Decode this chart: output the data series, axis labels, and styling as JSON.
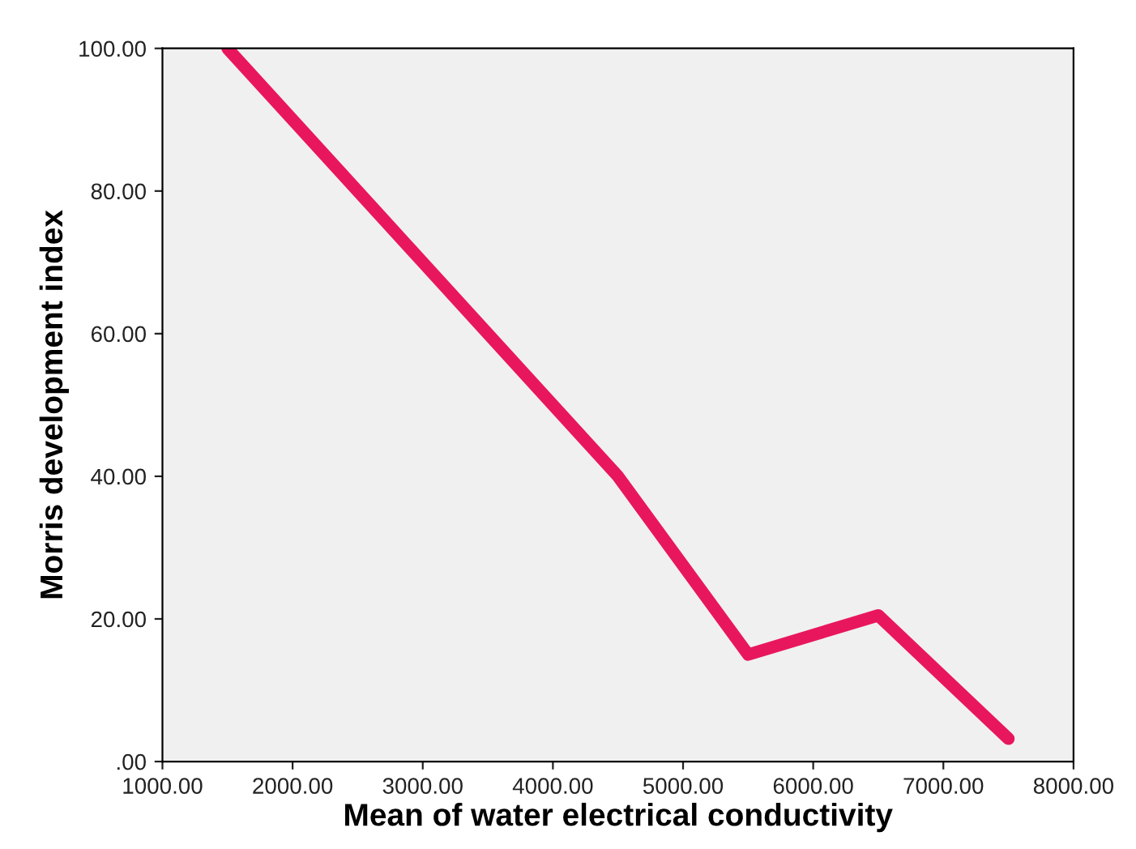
{
  "chart_data": {
    "type": "line",
    "xlabel": "Mean of water electrical conductivity",
    "ylabel": "Morris development index",
    "x": [
      1500,
      4500,
      5500,
      6500,
      7500
    ],
    "series": [
      {
        "color": "#e8175d",
        "values": [
          100,
          40,
          15,
          20.5,
          3.2
        ]
      }
    ],
    "xlim": [
      1000,
      8000
    ],
    "ylim": [
      0,
      100
    ],
    "xticks": [
      {
        "value": 1000,
        "label": "1000.00"
      },
      {
        "value": 2000,
        "label": "2000.00"
      },
      {
        "value": 3000,
        "label": "3000.00"
      },
      {
        "value": 4000,
        "label": "4000.00"
      },
      {
        "value": 5000,
        "label": "5000.00"
      },
      {
        "value": 6000,
        "label": "6000.00"
      },
      {
        "value": 7000,
        "label": "7000.00"
      },
      {
        "value": 8000,
        "label": "8000.00"
      }
    ],
    "yticks": [
      {
        "value": 0,
        "label": ".00"
      },
      {
        "value": 20,
        "label": "20.00"
      },
      {
        "value": 40,
        "label": "40.00"
      },
      {
        "value": 60,
        "label": "60.00"
      },
      {
        "value": 80,
        "label": "80.00"
      },
      {
        "value": 100,
        "label": "100.00"
      }
    ],
    "grid": false,
    "legend": false,
    "marker": "none",
    "line_style": "solid"
  }
}
